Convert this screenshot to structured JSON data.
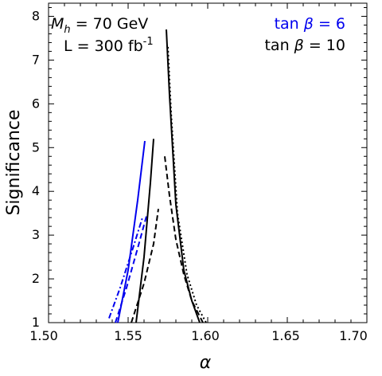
{
  "chart_data": {
    "type": "line",
    "xlabel": "α",
    "ylabel": "Significance",
    "xlim": [
      1.5,
      1.7
    ],
    "ylim": [
      1,
      8.3
    ],
    "xticks": [
      "1.50",
      "1.55",
      "1.60",
      "1.65",
      "1.70"
    ],
    "yticks": [
      "1",
      "2",
      "3",
      "4",
      "5",
      "6",
      "7",
      "8"
    ],
    "grid": false,
    "annotations": {
      "mass_prefix": "M",
      "mass_sub": "h",
      "mass_suffix": " = 70 GeV",
      "lumi_prefix": "L = 300 fb",
      "lumi_sup": "-1",
      "legend_top_prefix": "tan ",
      "legend_top_sym": "β",
      "legend_top_suffix": " = 6",
      "legend_bottom_prefix": "tan ",
      "legend_bottom_sym": "β",
      "legend_bottom_suffix": " = 10"
    },
    "colors": {
      "blue": "#0000ee",
      "black": "#000000"
    },
    "series": [
      {
        "color": "#0000ee",
        "style": "solid",
        "x": [
          1.5435,
          1.55,
          1.556,
          1.5605
        ],
        "y": [
          1.0,
          2.2,
          3.8,
          5.15
        ]
      },
      {
        "color": "#0000ee",
        "style": "dashed",
        "x": [
          1.542,
          1.549,
          1.556,
          1.562
        ],
        "y": [
          1.0,
          1.8,
          2.7,
          3.5
        ]
      },
      {
        "color": "#0000ee",
        "style": "dashdot",
        "x": [
          1.538,
          1.545,
          1.553,
          1.559
        ],
        "y": [
          1.1,
          1.8,
          2.7,
          3.4
        ]
      },
      {
        "color": "#000000",
        "style": "solid",
        "x": [
          1.555,
          1.56,
          1.564,
          1.566
        ],
        "y": [
          1.0,
          2.5,
          4.2,
          5.2
        ]
      },
      {
        "color": "#000000",
        "style": "solid",
        "x": [
          1.574,
          1.576,
          1.58,
          1.585,
          1.59,
          1.595
        ],
        "y": [
          7.7,
          6.2,
          3.7,
          2.2,
          1.5,
          1.0
        ]
      },
      {
        "color": "#000000",
        "style": "dashed",
        "x": [
          1.552,
          1.56,
          1.566,
          1.569
        ],
        "y": [
          1.0,
          1.9,
          2.8,
          3.6
        ]
      },
      {
        "color": "#000000",
        "style": "dashed",
        "x": [
          1.573,
          1.576,
          1.58,
          1.585,
          1.59,
          1.597
        ],
        "y": [
          4.8,
          3.9,
          2.9,
          2.1,
          1.5,
          1.0
        ]
      },
      {
        "color": "#000000",
        "style": "dotted",
        "x": [
          1.575,
          1.577,
          1.581,
          1.587,
          1.593,
          1.599
        ],
        "y": [
          7.3,
          5.8,
          3.5,
          2.1,
          1.4,
          1.0
        ]
      }
    ]
  }
}
